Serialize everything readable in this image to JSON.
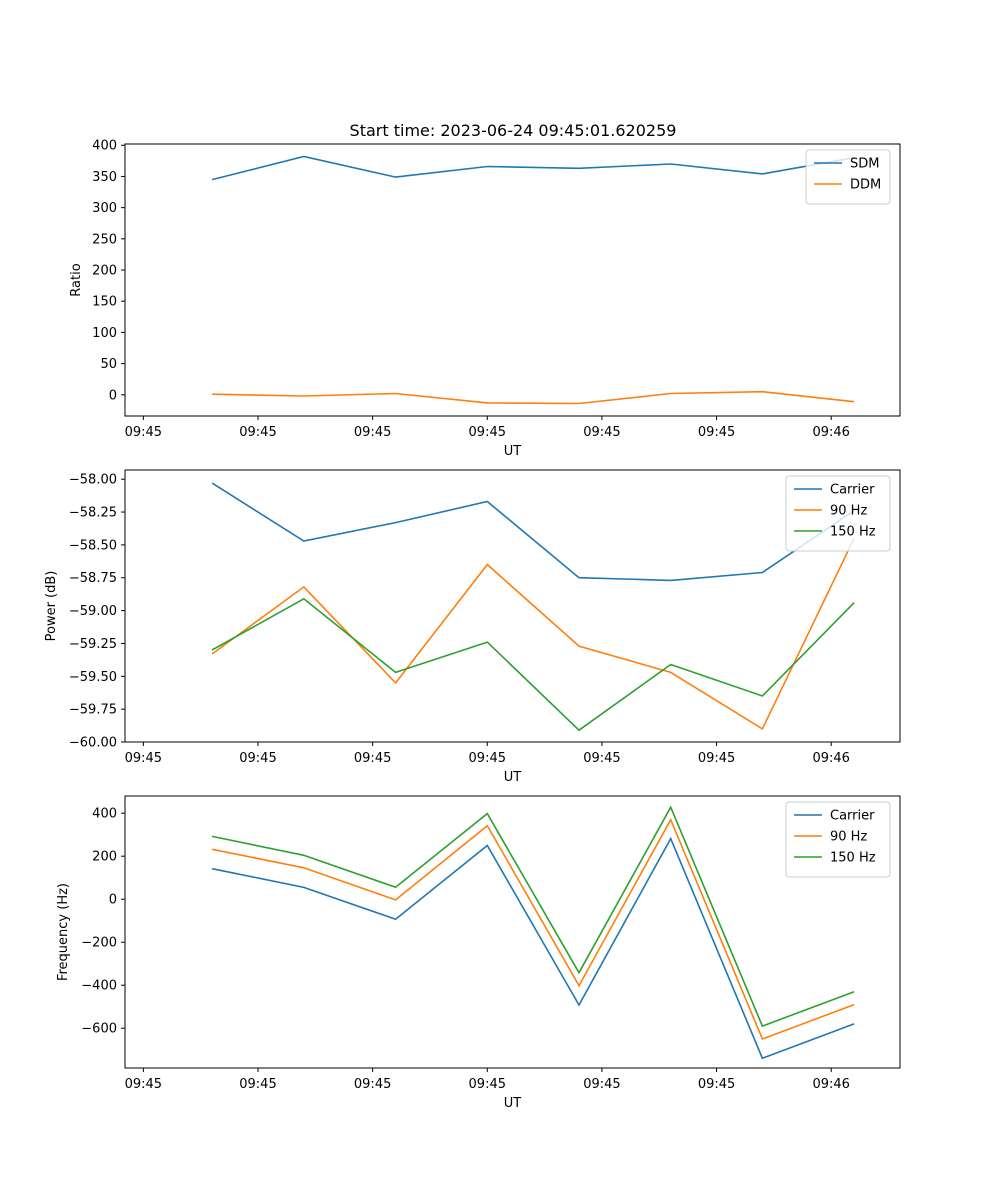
{
  "colors": {
    "blue": "#1f77b4",
    "orange": "#ff7f0e",
    "green": "#2ca02c"
  },
  "chart_data": [
    {
      "type": "line",
      "title": "Start time: 2023-06-24 09:45:01.620259",
      "xlabel": "UT",
      "ylabel": "Ratio",
      "xtick_labels": [
        "09:45",
        "09:45",
        "09:45",
        "09:45",
        "09:45",
        "09:45",
        "09:46"
      ],
      "yticks": [
        0,
        50,
        100,
        150,
        200,
        250,
        300,
        350,
        400
      ],
      "ylim": [
        -34,
        402
      ],
      "grid": false,
      "legend_position": "top-right",
      "x": [
        1,
        2,
        3,
        4,
        5,
        6,
        7,
        8
      ],
      "series": [
        {
          "name": "SDM",
          "color": "#1f77b4",
          "values": [
            345,
            382,
            349,
            366,
            363,
            370,
            354,
            380
          ]
        },
        {
          "name": "DDM",
          "color": "#ff7f0e",
          "values": [
            1,
            -2,
            2,
            -13,
            -14,
            2,
            5,
            -11
          ]
        }
      ]
    },
    {
      "type": "line",
      "title": "",
      "xlabel": "UT",
      "ylabel": "Power (dB)",
      "xtick_labels": [
        "09:45",
        "09:45",
        "09:45",
        "09:45",
        "09:45",
        "09:45",
        "09:46"
      ],
      "yticks": [
        -58.0,
        -58.25,
        -58.5,
        -58.75,
        -59.0,
        -59.25,
        -59.5,
        -59.75,
        -60.0
      ],
      "ylim": [
        -60.0,
        -57.93
      ],
      "grid": false,
      "legend_position": "top-right",
      "x": [
        1,
        2,
        3,
        4,
        5,
        6,
        7,
        8
      ],
      "series": [
        {
          "name": "Carrier",
          "color": "#1f77b4",
          "values": [
            -58.03,
            -58.47,
            -58.33,
            -58.17,
            -58.75,
            -58.77,
            -58.71,
            -58.24
          ]
        },
        {
          "name": "90 Hz",
          "color": "#ff7f0e",
          "values": [
            -59.33,
            -58.82,
            -59.55,
            -58.65,
            -59.27,
            -59.47,
            -59.9,
            -58.45
          ]
        },
        {
          "name": "150 Hz",
          "color": "#2ca02c",
          "values": [
            -59.3,
            -58.91,
            -59.47,
            -59.24,
            -59.91,
            -59.41,
            -59.65,
            -58.94
          ]
        }
      ]
    },
    {
      "type": "line",
      "title": "",
      "xlabel": "UT",
      "ylabel": "Frequency (Hz)",
      "xtick_labels": [
        "09:45",
        "09:45",
        "09:45",
        "09:45",
        "09:45",
        "09:45",
        "09:46"
      ],
      "yticks": [
        400,
        200,
        0,
        -200,
        -400,
        -600
      ],
      "ylim": [
        -785,
        480
      ],
      "grid": false,
      "legend_position": "top-right",
      "x": [
        1,
        2,
        3,
        4,
        5,
        6,
        7,
        8
      ],
      "series": [
        {
          "name": "Carrier",
          "color": "#1f77b4",
          "values": [
            142,
            55,
            -93,
            250,
            -492,
            282,
            -740,
            -580
          ]
        },
        {
          "name": "90 Hz",
          "color": "#ff7f0e",
          "values": [
            232,
            146,
            -3,
            342,
            -402,
            370,
            -650,
            -490
          ]
        },
        {
          "name": "150 Hz",
          "color": "#2ca02c",
          "values": [
            292,
            204,
            56,
            398,
            -342,
            428,
            -590,
            -430
          ]
        }
      ]
    }
  ]
}
